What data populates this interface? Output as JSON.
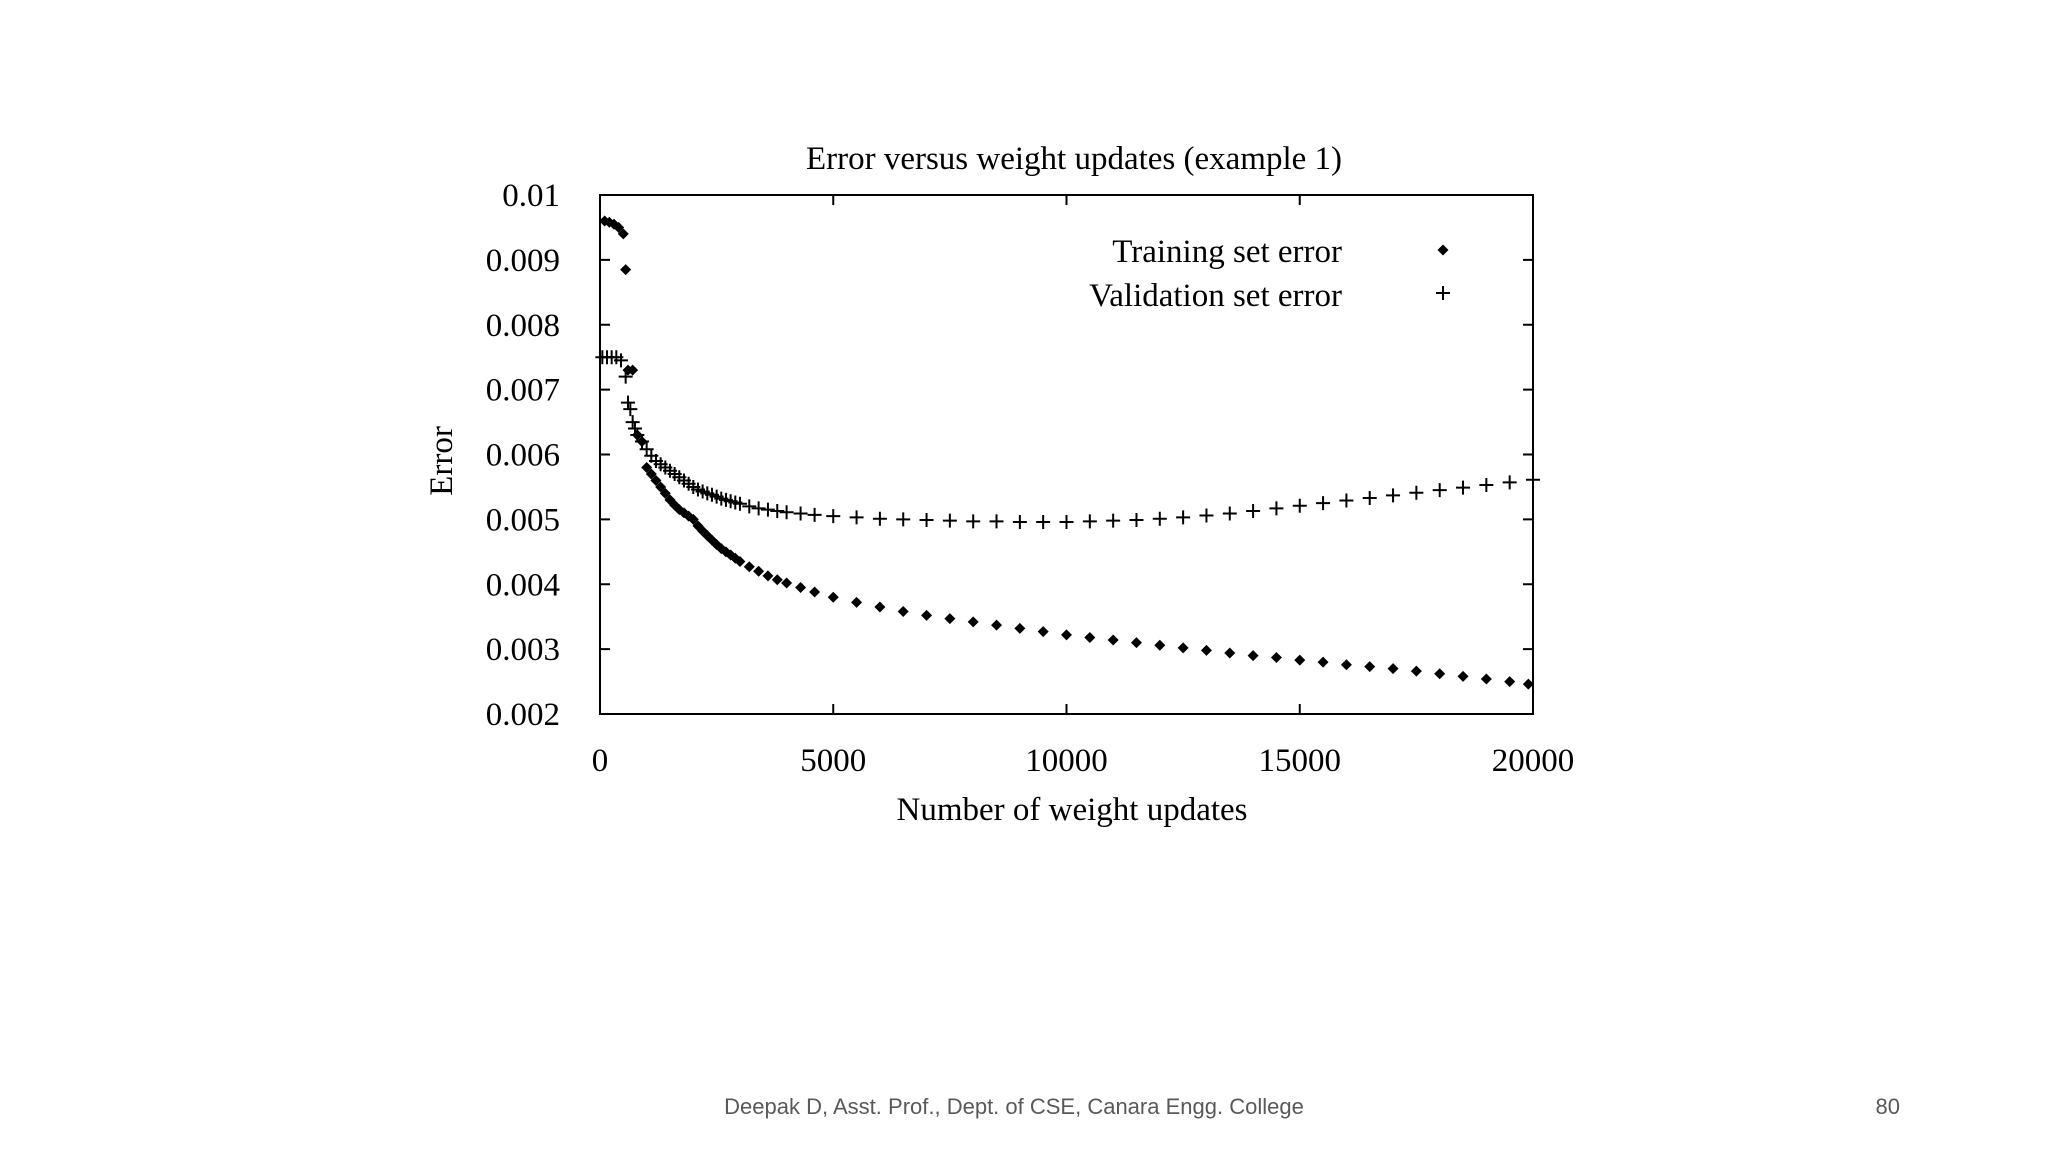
{
  "slide": {
    "footer": "Deepak D, Asst. Prof., Dept. of CSE, Canara Engg. College",
    "page_number": "80"
  },
  "chart_data": {
    "type": "scatter",
    "title": "Error versus weight updates (example 1)",
    "xlabel": "Number of weight updates",
    "ylabel": "Error",
    "xlim": [
      0,
      20000
    ],
    "ylim": [
      0.002,
      0.01
    ],
    "x_ticks": [
      {
        "value": 0,
        "label": "0"
      },
      {
        "value": 5000,
        "label": "5000"
      },
      {
        "value": 10000,
        "label": "10000"
      },
      {
        "value": 15000,
        "label": "15000"
      },
      {
        "value": 20000,
        "label": "20000"
      }
    ],
    "y_ticks": [
      {
        "value": 0.002,
        "label": "0.002"
      },
      {
        "value": 0.003,
        "label": "0.003"
      },
      {
        "value": 0.004,
        "label": "0.004"
      },
      {
        "value": 0.005,
        "label": "0.005"
      },
      {
        "value": 0.006,
        "label": "0.006"
      },
      {
        "value": 0.007,
        "label": "0.007"
      },
      {
        "value": 0.008,
        "label": "0.008"
      },
      {
        "value": 0.009,
        "label": "0.009"
      },
      {
        "value": 0.01,
        "label": "0.01"
      }
    ],
    "grid": false,
    "legend_position": "top-right",
    "series": [
      {
        "name": "Training set error",
        "marker": "diamond",
        "points": [
          [
            100,
            0.0096
          ],
          [
            200,
            0.00958
          ],
          [
            300,
            0.00955
          ],
          [
            400,
            0.0095
          ],
          [
            500,
            0.0094
          ],
          [
            550,
            0.00885
          ],
          [
            600,
            0.0073
          ],
          [
            700,
            0.0073
          ],
          [
            800,
            0.0063
          ],
          [
            900,
            0.0062
          ],
          [
            1000,
            0.0058
          ],
          [
            1100,
            0.0057
          ],
          [
            1200,
            0.0056
          ],
          [
            1300,
            0.0055
          ],
          [
            1400,
            0.0054
          ],
          [
            1500,
            0.0053
          ],
          [
            1600,
            0.00522
          ],
          [
            1700,
            0.00515
          ],
          [
            1800,
            0.0051
          ],
          [
            1900,
            0.00505
          ],
          [
            2000,
            0.005
          ],
          [
            2100,
            0.0049
          ],
          [
            2200,
            0.00482
          ],
          [
            2300,
            0.00475
          ],
          [
            2400,
            0.00468
          ],
          [
            2500,
            0.00461
          ],
          [
            2600,
            0.00455
          ],
          [
            2700,
            0.0045
          ],
          [
            2800,
            0.00445
          ],
          [
            2900,
            0.0044
          ],
          [
            3000,
            0.00435
          ],
          [
            3200,
            0.00427
          ],
          [
            3400,
            0.0042
          ],
          [
            3600,
            0.00413
          ],
          [
            3800,
            0.00407
          ],
          [
            4000,
            0.00402
          ],
          [
            4300,
            0.00395
          ],
          [
            4600,
            0.00388
          ],
          [
            5000,
            0.0038
          ],
          [
            5500,
            0.00372
          ],
          [
            6000,
            0.00365
          ],
          [
            6500,
            0.00358
          ],
          [
            7000,
            0.00352
          ],
          [
            7500,
            0.00347
          ],
          [
            8000,
            0.00342
          ],
          [
            8500,
            0.00337
          ],
          [
            9000,
            0.00332
          ],
          [
            9500,
            0.00327
          ],
          [
            10000,
            0.00322
          ],
          [
            10500,
            0.00318
          ],
          [
            11000,
            0.00314
          ],
          [
            11500,
            0.0031
          ],
          [
            12000,
            0.00306
          ],
          [
            12500,
            0.00302
          ],
          [
            13000,
            0.00298
          ],
          [
            13500,
            0.00294
          ],
          [
            14000,
            0.0029
          ],
          [
            14500,
            0.00287
          ],
          [
            15000,
            0.00283
          ],
          [
            15500,
            0.0028
          ],
          [
            16000,
            0.00276
          ],
          [
            16500,
            0.00273
          ],
          [
            17000,
            0.0027
          ],
          [
            17500,
            0.00266
          ],
          [
            18000,
            0.00262
          ],
          [
            18500,
            0.00258
          ],
          [
            19000,
            0.00254
          ],
          [
            19500,
            0.0025
          ],
          [
            19900,
            0.00246
          ]
        ]
      },
      {
        "name": "Validation set error",
        "marker": "plus",
        "points": [
          [
            50,
            0.0075
          ],
          [
            150,
            0.0075
          ],
          [
            250,
            0.0075
          ],
          [
            350,
            0.0075
          ],
          [
            450,
            0.00745
          ],
          [
            550,
            0.0072
          ],
          [
            600,
            0.0068
          ],
          [
            650,
            0.0067
          ],
          [
            700,
            0.0065
          ],
          [
            750,
            0.0064
          ],
          [
            800,
            0.0063
          ],
          [
            900,
            0.0062
          ],
          [
            1000,
            0.00608
          ],
          [
            1100,
            0.00598
          ],
          [
            1200,
            0.0059
          ],
          [
            1300,
            0.00585
          ],
          [
            1400,
            0.0058
          ],
          [
            1500,
            0.00575
          ],
          [
            1600,
            0.0057
          ],
          [
            1700,
            0.00565
          ],
          [
            1800,
            0.0056
          ],
          [
            1900,
            0.00555
          ],
          [
            2000,
            0.0055
          ],
          [
            2100,
            0.00546
          ],
          [
            2200,
            0.00543
          ],
          [
            2300,
            0.0054
          ],
          [
            2400,
            0.00538
          ],
          [
            2500,
            0.00535
          ],
          [
            2600,
            0.00532
          ],
          [
            2700,
            0.0053
          ],
          [
            2800,
            0.00528
          ],
          [
            2900,
            0.00526
          ],
          [
            3000,
            0.00524
          ],
          [
            3200,
            0.0052
          ],
          [
            3400,
            0.00517
          ],
          [
            3600,
            0.00515
          ],
          [
            3800,
            0.00513
          ],
          [
            4000,
            0.00511
          ],
          [
            4300,
            0.00509
          ],
          [
            4600,
            0.00507
          ],
          [
            5000,
            0.00505
          ],
          [
            5500,
            0.00503
          ],
          [
            6000,
            0.00501
          ],
          [
            6500,
            0.005
          ],
          [
            7000,
            0.00499
          ],
          [
            7500,
            0.00498
          ],
          [
            8000,
            0.00497
          ],
          [
            8500,
            0.00497
          ],
          [
            9000,
            0.00496
          ],
          [
            9500,
            0.00496
          ],
          [
            10000,
            0.00496
          ],
          [
            10500,
            0.00497
          ],
          [
            11000,
            0.00498
          ],
          [
            11500,
            0.00499
          ],
          [
            12000,
            0.00501
          ],
          [
            12500,
            0.00503
          ],
          [
            13000,
            0.00506
          ],
          [
            13500,
            0.00509
          ],
          [
            14000,
            0.00513
          ],
          [
            14500,
            0.00517
          ],
          [
            15000,
            0.00521
          ],
          [
            15500,
            0.00525
          ],
          [
            16000,
            0.00529
          ],
          [
            16500,
            0.00533
          ],
          [
            17000,
            0.00537
          ],
          [
            17500,
            0.00541
          ],
          [
            18000,
            0.00545
          ],
          [
            18500,
            0.00549
          ],
          [
            19000,
            0.00553
          ],
          [
            19500,
            0.00557
          ],
          [
            20000,
            0.00561
          ]
        ]
      }
    ]
  }
}
